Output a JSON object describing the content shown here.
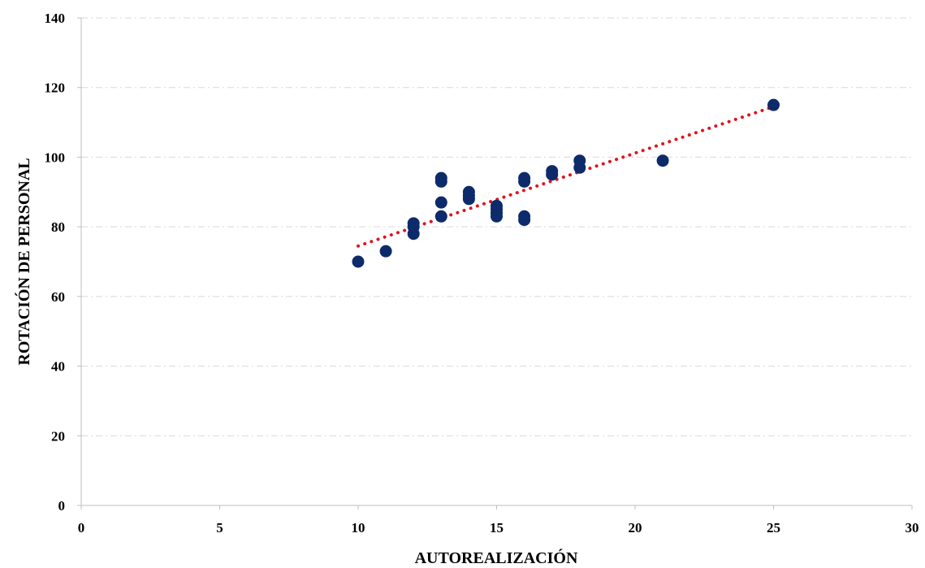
{
  "chart_data": {
    "type": "scatter",
    "xlabel": "AUTOREALIZACIÓN",
    "ylabel": "ROTACIÓN DE PERSONAL",
    "xlim": [
      0,
      30
    ],
    "ylim": [
      0,
      140
    ],
    "xticks": [
      0,
      5,
      10,
      15,
      20,
      25,
      30
    ],
    "yticks": [
      0,
      20,
      40,
      60,
      80,
      100,
      120,
      140
    ],
    "grid": true,
    "legend": "none",
    "points": [
      {
        "x": 10,
        "y": 70
      },
      {
        "x": 11,
        "y": 73
      },
      {
        "x": 12,
        "y": 78
      },
      {
        "x": 12,
        "y": 80
      },
      {
        "x": 12,
        "y": 81
      },
      {
        "x": 13,
        "y": 83
      },
      {
        "x": 13,
        "y": 87
      },
      {
        "x": 13,
        "y": 93
      },
      {
        "x": 13,
        "y": 94
      },
      {
        "x": 14,
        "y": 88
      },
      {
        "x": 14,
        "y": 89
      },
      {
        "x": 14,
        "y": 90
      },
      {
        "x": 15,
        "y": 83
      },
      {
        "x": 15,
        "y": 84
      },
      {
        "x": 15,
        "y": 85
      },
      {
        "x": 15,
        "y": 86
      },
      {
        "x": 16,
        "y": 82
      },
      {
        "x": 16,
        "y": 83
      },
      {
        "x": 16,
        "y": 93
      },
      {
        "x": 16,
        "y": 94
      },
      {
        "x": 17,
        "y": 95
      },
      {
        "x": 17,
        "y": 96
      },
      {
        "x": 18,
        "y": 97
      },
      {
        "x": 18,
        "y": 99
      },
      {
        "x": 21,
        "y": 99
      },
      {
        "x": 25,
        "y": 115
      }
    ],
    "trendline": {
      "type": "linear",
      "x_start": 10,
      "y_start": 74.5,
      "x_end": 25,
      "y_end": 114.5
    },
    "colors": {
      "points": "#0d2b6b",
      "trendline": "#e0141c",
      "grid": "#d9d9d9",
      "axis": "#bfbfbf"
    }
  }
}
